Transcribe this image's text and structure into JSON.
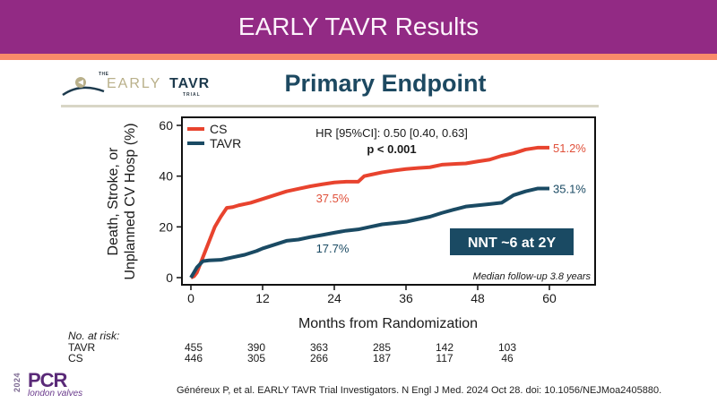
{
  "slide": {
    "title": "EARLY TAVR Results",
    "colors": {
      "banner": "#922a84",
      "stripe": "#f98a6a",
      "title_text": "#1d4961"
    }
  },
  "logo": {
    "the": "THE",
    "early": "EARLY",
    "tavr": "TAVR",
    "trial": "TRIAL"
  },
  "chart_title": "Primary Endpoint",
  "chart_data": {
    "type": "line",
    "title": "Primary Endpoint",
    "xlabel": "Months from Randomization",
    "ylabel_line1": "Death, Stroke, or",
    "ylabel_line2": "Unplanned CV Hosp (%)",
    "xlim": [
      -1.5,
      67.5
    ],
    "ylim": [
      -2.5,
      63
    ],
    "xticks": [
      0,
      12,
      24,
      36,
      48,
      60
    ],
    "yticks": [
      0,
      20,
      40,
      60
    ],
    "grid": false,
    "legend_position": "top-left",
    "series": [
      {
        "name": "CS",
        "color": "#e8432e",
        "points": [
          [
            0,
            0
          ],
          [
            0.5,
            0.5
          ],
          [
            1,
            2
          ],
          [
            2,
            8
          ],
          [
            3,
            14
          ],
          [
            4,
            20
          ],
          [
            5,
            24
          ],
          [
            6,
            27.5
          ],
          [
            7,
            27.8
          ],
          [
            8,
            28.5
          ],
          [
            10,
            29.5
          ],
          [
            12,
            31
          ],
          [
            14,
            32.5
          ],
          [
            16,
            34
          ],
          [
            18,
            35
          ],
          [
            20,
            36
          ],
          [
            22,
            36.8
          ],
          [
            24,
            37.5
          ],
          [
            26,
            37.8
          ],
          [
            28,
            37.8
          ],
          [
            29,
            40
          ],
          [
            30,
            40.5
          ],
          [
            32,
            41.5
          ],
          [
            34,
            42.2
          ],
          [
            36,
            42.8
          ],
          [
            38,
            43.2
          ],
          [
            40,
            43.5
          ],
          [
            42,
            44.5
          ],
          [
            44,
            44.8
          ],
          [
            46,
            45
          ],
          [
            48,
            45.8
          ],
          [
            50,
            46.5
          ],
          [
            52,
            48
          ],
          [
            54,
            49
          ],
          [
            56,
            50.5
          ],
          [
            58,
            51.2
          ],
          [
            60,
            51.2
          ]
        ]
      },
      {
        "name": "TAVR",
        "color": "#1a4a63",
        "points": [
          [
            0,
            0
          ],
          [
            0.5,
            2
          ],
          [
            1,
            4
          ],
          [
            2,
            6.5
          ],
          [
            3,
            6.8
          ],
          [
            5,
            7
          ],
          [
            7,
            8
          ],
          [
            9,
            9
          ],
          [
            11,
            10.5
          ],
          [
            12,
            11.5
          ],
          [
            14,
            13
          ],
          [
            16,
            14.5
          ],
          [
            18,
            15
          ],
          [
            20,
            16
          ],
          [
            22,
            16.8
          ],
          [
            24,
            17.7
          ],
          [
            26,
            18.5
          ],
          [
            28,
            19
          ],
          [
            30,
            20
          ],
          [
            32,
            21
          ],
          [
            34,
            21.5
          ],
          [
            36,
            22
          ],
          [
            38,
            23
          ],
          [
            40,
            24
          ],
          [
            42,
            25.5
          ],
          [
            44,
            26.8
          ],
          [
            46,
            28
          ],
          [
            48,
            28.5
          ],
          [
            50,
            29
          ],
          [
            52,
            29.5
          ],
          [
            53,
            31
          ],
          [
            54,
            32.5
          ],
          [
            56,
            34
          ],
          [
            58,
            35.1
          ],
          [
            60,
            35.1
          ]
        ]
      }
    ],
    "annotations": {
      "hr": "HR [95%CI]: 0.50 [0.40, 0.63]",
      "p": "p < 0.001",
      "cs_24m": {
        "text": "37.5%",
        "x": 24,
        "y": 37.5
      },
      "tavr_24m": {
        "text": "17.7%",
        "x": 24,
        "y": 17.7
      },
      "cs_end": {
        "text": "51.2%",
        "x": 60,
        "y": 51.2
      },
      "tavr_end": {
        "text": "35.1%",
        "x": 60,
        "y": 35.1
      },
      "nnt": "NNT ~6 at 2Y",
      "followup": "Median follow-up 3.8 years"
    },
    "risk_table": {
      "title": "No. at risk:",
      "rows": [
        {
          "label": "TAVR",
          "values": [
            455,
            390,
            363,
            285,
            142,
            103
          ]
        },
        {
          "label": "CS",
          "values": [
            446,
            305,
            266,
            187,
            117,
            46
          ]
        }
      ]
    }
  },
  "footer": {
    "pcr_year": "2024",
    "pcr_name": "PCR",
    "pcr_sub": "london valves",
    "citation": "Généreux P, et al. EARLY TAVR Trial Investigators. N Engl J Med. 2024 Oct 28. doi: 10.1056/NEJMoa2405880."
  }
}
